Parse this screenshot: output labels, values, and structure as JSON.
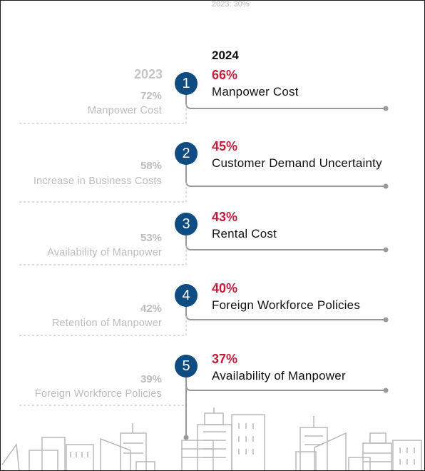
{
  "header": {
    "year_current": "2024",
    "year_previous": "2023"
  },
  "colors": {
    "badge": "#0f4c81",
    "current_pct": "#c01d3c",
    "line": "#999999",
    "prev_text": "#bcbcbc"
  },
  "items": [
    {
      "rank": "1",
      "current_pct": "66%",
      "current_label": "Manpower Cost",
      "note": "",
      "prev_pct": "72%",
      "prev_label": "Manpower Cost"
    },
    {
      "rank": "2",
      "current_pct": "45%",
      "current_label": "Customer Demand Uncertainty",
      "note": "2023: 30%",
      "prev_pct": "58%",
      "prev_label": "Increase in Business Costs"
    },
    {
      "rank": "3",
      "current_pct": "43%",
      "current_label": "Rental Cost",
      "note": "",
      "prev_pct": "53%",
      "prev_label": "Availability of Manpower"
    },
    {
      "rank": "4",
      "current_pct": "40%",
      "current_label": "Foreign Workforce Policies",
      "note": "",
      "prev_pct": "42%",
      "prev_label": "Retention of Manpower"
    },
    {
      "rank": "5",
      "current_pct": "37%",
      "current_label": "Availability of Manpower",
      "note": "",
      "prev_pct": "39%",
      "prev_label": "Foreign Workforce Policies"
    }
  ]
}
